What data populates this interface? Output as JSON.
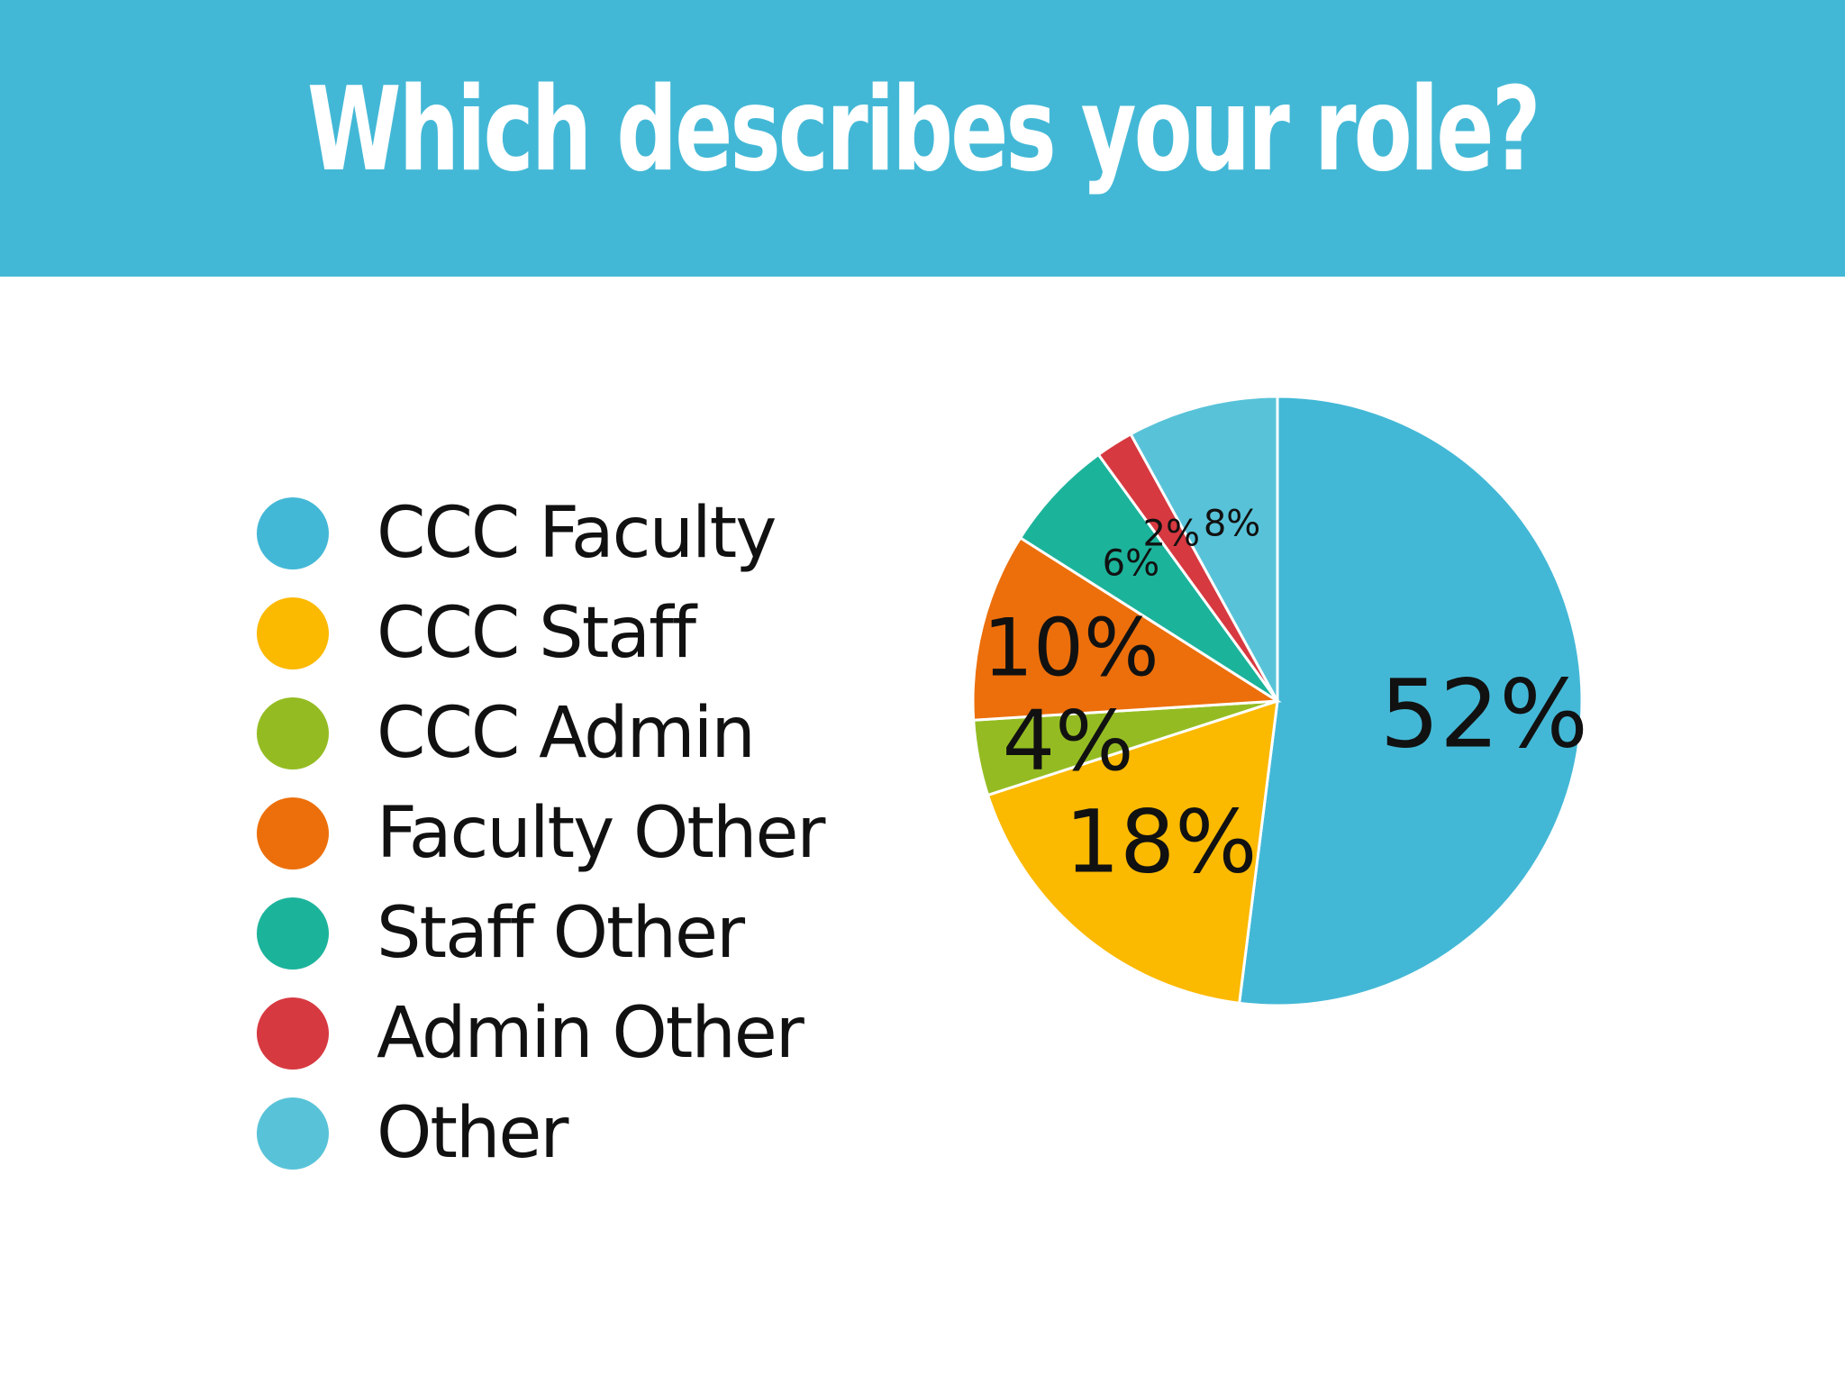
{
  "header": {
    "title": "Which describes your role?"
  },
  "colors": {
    "header_bg": "#43b8d6",
    "text": "#111111"
  },
  "legend": {
    "items": [
      {
        "label": "CCC Faculty",
        "color": "#43b8d6"
      },
      {
        "label": "CCC Staff",
        "color": "#fbb900"
      },
      {
        "label": "CCC Admin",
        "color": "#94bc22"
      },
      {
        "label": "Faculty Other",
        "color": "#ec6f0b"
      },
      {
        "label": "Staff Other",
        "color": "#1cb39b"
      },
      {
        "label": "Admin Other",
        "color": "#d73940"
      },
      {
        "label": "Other",
        "color": "#58c3d8"
      }
    ]
  },
  "chart_data": {
    "type": "pie",
    "title": "Which describes your role?",
    "start_angle": "12 o'clock",
    "direction": "clockwise",
    "legend_position": "left",
    "slices": [
      {
        "label": "CCC Faculty",
        "value": 52,
        "display": "52%",
        "color": "#43b8d6"
      },
      {
        "label": "CCC Staff",
        "value": 18,
        "display": "18%",
        "color": "#fbb900"
      },
      {
        "label": "CCC Admin",
        "value": 4,
        "display": "4%",
        "color": "#94bc22"
      },
      {
        "label": "Faculty Other",
        "value": 10,
        "display": "10%",
        "color": "#ec6f0b"
      },
      {
        "label": "Staff Other",
        "value": 6,
        "display": "6%",
        "color": "#1cb39b"
      },
      {
        "label": "Admin Other",
        "value": 2,
        "display": "2%",
        "color": "#d73940"
      },
      {
        "label": "Other",
        "value": 8,
        "display": "8%",
        "color": "#58c3d8"
      }
    ]
  }
}
